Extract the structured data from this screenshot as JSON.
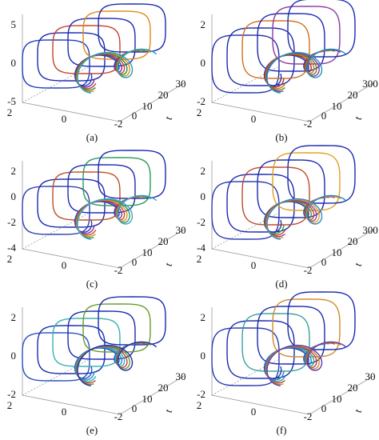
{
  "panels": [
    {
      "caption": "(a)",
      "z_ticks": [
        "5",
        "0",
        "-5"
      ],
      "x_ticks": [
        "2",
        "0",
        "-2"
      ],
      "t_ticks": [
        "0",
        "10",
        "20",
        "30"
      ],
      "t_label": "t"
    },
    {
      "caption": "(b)",
      "z_ticks": [
        "2",
        "0",
        "-2"
      ],
      "x_ticks": [
        "2",
        "0",
        "-2"
      ],
      "t_ticks": [
        "0",
        "10",
        "20",
        "300"
      ],
      "t_label": "t"
    },
    {
      "caption": "(c)",
      "z_ticks": [
        "2",
        "0",
        "-2",
        "-4"
      ],
      "x_ticks": [
        "2",
        "0",
        "-2"
      ],
      "t_ticks": [
        "0",
        "10",
        "20",
        "30"
      ],
      "t_label": "t"
    },
    {
      "caption": "(d)",
      "z_ticks": [
        "2",
        "0",
        "-2",
        "-4"
      ],
      "x_ticks": [
        "2",
        "0",
        "-2"
      ],
      "t_ticks": [
        "0",
        "10",
        "20",
        "300"
      ],
      "t_label": "t"
    },
    {
      "caption": "(e)",
      "z_ticks": [
        "2",
        "0",
        "-2"
      ],
      "x_ticks": [
        "2",
        "0",
        "-2"
      ],
      "t_ticks": [
        "0",
        "10",
        "20",
        "30"
      ],
      "t_label": "t"
    },
    {
      "caption": "(f)",
      "z_ticks": [
        "2",
        "0",
        "-2"
      ],
      "x_ticks": [
        "2",
        "0",
        "-2"
      ],
      "t_ticks": [
        "0",
        "10",
        "20",
        "30"
      ],
      "t_label": "t"
    }
  ]
}
